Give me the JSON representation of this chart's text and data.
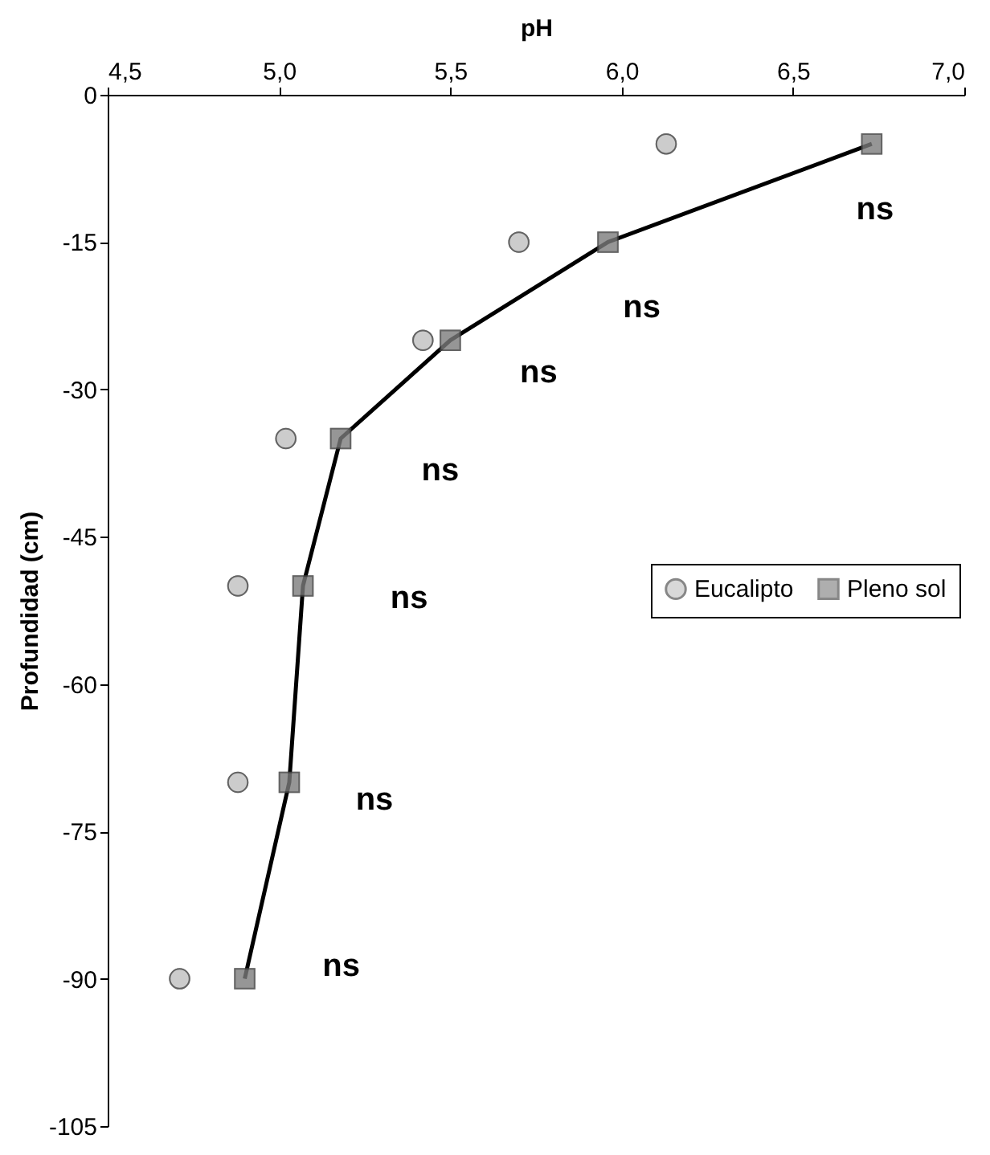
{
  "chart_data": {
    "type": "line",
    "xlabel": "pH",
    "ylabel": "Profundidad (cm)",
    "xlim": [
      4.5,
      7.0
    ],
    "xticks": [
      {
        "value": 4.5,
        "label": "4,5"
      },
      {
        "value": 5.0,
        "label": "5,0"
      },
      {
        "value": 5.5,
        "label": "5,5"
      },
      {
        "value": 6.0,
        "label": "6,0"
      },
      {
        "value": 6.5,
        "label": "6,5"
      },
      {
        "value": 7.0,
        "label": "7,0"
      }
    ],
    "ylim": [
      -105,
      0
    ],
    "yticks": [
      0,
      -15,
      -30,
      -45,
      -60,
      -75,
      -90,
      -105
    ],
    "grid": false,
    "legend": "right",
    "series": [
      {
        "name": "Eucalipto",
        "type": "scatter",
        "marker": "circle",
        "color": "#c8c8c8",
        "x": [
          6.13,
          5.7,
          5.42,
          5.02,
          4.88,
          4.88,
          4.71
        ],
        "values": [
          -5,
          -15,
          -25,
          -35,
          -50,
          -70,
          -90
        ]
      },
      {
        "name": "Pleno sol",
        "marker": "square",
        "color": "#8c8c8c",
        "x": [
          6.73,
          5.96,
          5.5,
          5.18,
          5.07,
          5.03,
          4.9
        ],
        "values": [
          -5,
          -15,
          -25,
          -35,
          -50,
          -70,
          -90
        ]
      }
    ],
    "annotations": [
      "ns",
      "ns",
      "ns",
      "ns",
      "ns",
      "ns",
      "ns"
    ]
  }
}
